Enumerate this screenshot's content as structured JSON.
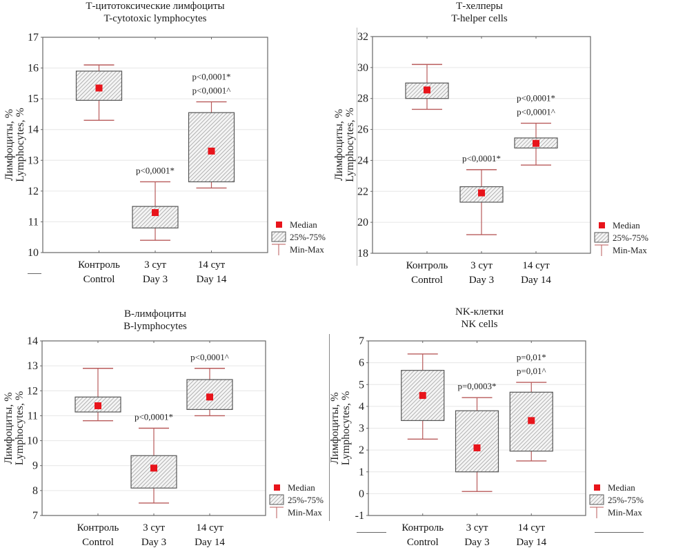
{
  "style": {
    "median_color": "#e8141b",
    "whisker_color": "#b85a5a",
    "box_stroke": "#555555",
    "hatch_color": "#8a8a8a",
    "grid_color": "#e6e6e6",
    "axis_color": "#666666"
  },
  "chart_data": [
    {
      "type": "box",
      "title": "Т-цитотоксические лимфоциты",
      "subtitle": "T-cytotoxic lymphocytes",
      "ylabel_ru": "Лимфоциты, %",
      "ylabel_en": "Lymphocytes, %",
      "ylim": [
        10,
        17
      ],
      "yticks": [
        10,
        11,
        12,
        13,
        14,
        15,
        16,
        17
      ],
      "grid": true,
      "categories": [
        {
          "ru": "Контроль",
          "en": "Control"
        },
        {
          "ru": "3 сут",
          "en": "Day 3"
        },
        {
          "ru": "14 сут",
          "en": "Day 14"
        }
      ],
      "series": [
        {
          "min": 14.3,
          "q1": 14.95,
          "median": 15.35,
          "q3": 15.9,
          "max": 16.1,
          "annotations": []
        },
        {
          "min": 10.4,
          "q1": 10.8,
          "median": 11.3,
          "q3": 11.5,
          "max": 12.3,
          "annotations": [
            "p<0,0001*"
          ]
        },
        {
          "min": 12.1,
          "q1": 12.3,
          "median": 13.3,
          "q3": 14.55,
          "max": 14.9,
          "annotations": [
            "p<0,0001*",
            "p<0,0001^"
          ]
        }
      ],
      "legend": {
        "placement": "bottom-right-outside",
        "items": [
          "Median",
          "25%-75%",
          "Min-Max"
        ]
      }
    },
    {
      "type": "box",
      "title": "Т-хелперы",
      "subtitle": "T-helper cells",
      "ylabel_ru": "Лимфоциты, %",
      "ylabel_en": "Lymphocytes, %",
      "ylim": [
        18,
        32
      ],
      "yticks": [
        18,
        20,
        22,
        24,
        26,
        28,
        30,
        32
      ],
      "grid": true,
      "categories": [
        {
          "ru": "Контроль",
          "en": "Control"
        },
        {
          "ru": "3 сут",
          "en": "Day 3"
        },
        {
          "ru": "14 сут",
          "en": "Day 14"
        }
      ],
      "series": [
        {
          "min": 27.3,
          "q1": 28.0,
          "median": 28.55,
          "q3": 29.0,
          "max": 30.2,
          "annotations": []
        },
        {
          "min": 19.2,
          "q1": 21.3,
          "median": 21.9,
          "q3": 22.3,
          "max": 23.4,
          "annotations": [
            "p<0,0001*"
          ]
        },
        {
          "min": 23.7,
          "q1": 24.8,
          "median": 25.1,
          "q3": 25.45,
          "max": 26.4,
          "annotations": [
            "p<0,0001*",
            "p<0,0001^"
          ]
        }
      ],
      "legend": {
        "placement": "bottom-right-outside",
        "items": [
          "Median",
          "25%-75%",
          "Min-Max"
        ]
      }
    },
    {
      "type": "box",
      "title": "В-лимфоциты",
      "subtitle": "B-lymphocytes",
      "ylabel_ru": "Лимфоциты, %",
      "ylabel_en": "Lymphocytes, %",
      "ylim": [
        7,
        14
      ],
      "yticks": [
        7,
        8,
        9,
        10,
        11,
        12,
        13,
        14
      ],
      "grid": true,
      "categories": [
        {
          "ru": "Контроль",
          "en": "Control"
        },
        {
          "ru": "3 сут",
          "en": "Day 3"
        },
        {
          "ru": "14 сут",
          "en": "Day 14"
        }
      ],
      "series": [
        {
          "min": 10.8,
          "q1": 11.15,
          "median": 11.4,
          "q3": 11.75,
          "max": 12.9,
          "annotations": []
        },
        {
          "min": 7.5,
          "q1": 8.1,
          "median": 8.9,
          "q3": 9.4,
          "max": 10.5,
          "annotations": [
            "p<0,0001*"
          ]
        },
        {
          "min": 11.0,
          "q1": 11.25,
          "median": 11.75,
          "q3": 12.45,
          "max": 12.9,
          "annotations": [
            "p<0,0001^"
          ]
        }
      ],
      "legend": {
        "placement": "bottom-right-outside",
        "items": [
          "Median",
          "25%-75%",
          "Min-Max"
        ]
      }
    },
    {
      "type": "box",
      "title": "NK-клетки",
      "subtitle": "NK cells",
      "ylabel_ru": "Лимфоциты, %",
      "ylabel_en": "Lymphocytes, %",
      "ylim": [
        -1,
        7
      ],
      "yticks": [
        -1,
        0,
        1,
        2,
        3,
        4,
        5,
        6,
        7
      ],
      "grid": true,
      "categories": [
        {
          "ru": "Контроль",
          "en": "Control"
        },
        {
          "ru": "3 сут",
          "en": "Day 3"
        },
        {
          "ru": "14 сут",
          "en": "Day 14"
        }
      ],
      "series": [
        {
          "min": 2.5,
          "q1": 3.35,
          "median": 4.5,
          "q3": 5.65,
          "max": 6.4,
          "annotations": []
        },
        {
          "min": 0.1,
          "q1": 1.0,
          "median": 2.1,
          "q3": 3.8,
          "max": 4.4,
          "annotations": [
            "p=0,0003*"
          ]
        },
        {
          "min": 1.5,
          "q1": 1.95,
          "median": 3.35,
          "q3": 4.65,
          "max": 5.1,
          "annotations": [
            "p=0,01*",
            "p=0,01^"
          ]
        }
      ],
      "legend": {
        "placement": "bottom-right-outside",
        "items": [
          "Median",
          "25%-75%",
          "Min-Max"
        ]
      }
    }
  ]
}
